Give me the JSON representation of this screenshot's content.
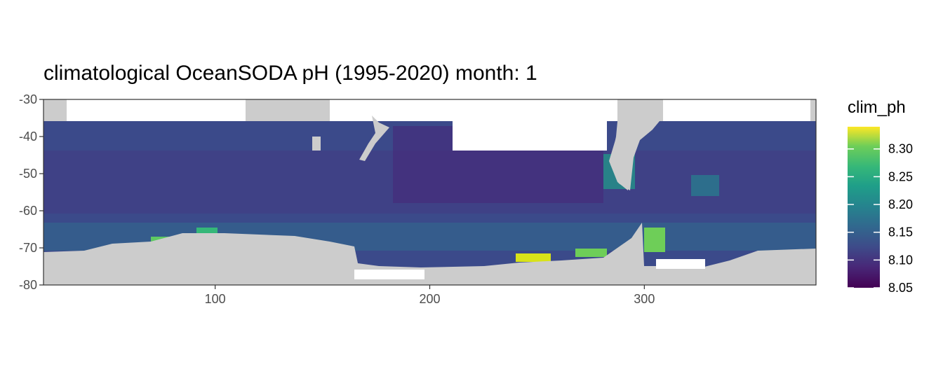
{
  "title": "climatological OceanSODA pH (1995-2020) month: 1",
  "chart_data": {
    "type": "heatmap",
    "title": "climatological OceanSODA pH (1995-2020) month: 1",
    "xlim": [
      20,
      380
    ],
    "ylim": [
      -80,
      -30
    ],
    "x_ticks": [
      "100",
      "200",
      "300"
    ],
    "y_ticks": [
      "-30",
      "-40",
      "-50",
      "-60",
      "-70",
      "-80"
    ],
    "grid": true,
    "legend": {
      "title": "clim_ph",
      "placement": "right",
      "range": [
        8.05,
        8.34
      ],
      "labels": [
        "8.30",
        "8.25",
        "8.20",
        "8.15",
        "8.10",
        "8.05"
      ],
      "colormap": "viridis"
    },
    "colors": {
      "land": "#cccccc",
      "missing": "#ffffff",
      "low": "#440154",
      "high": "#fde725"
    },
    "data_extent": {
      "lat_north": -36,
      "lon_min": 20,
      "lon_max": 380
    }
  }
}
